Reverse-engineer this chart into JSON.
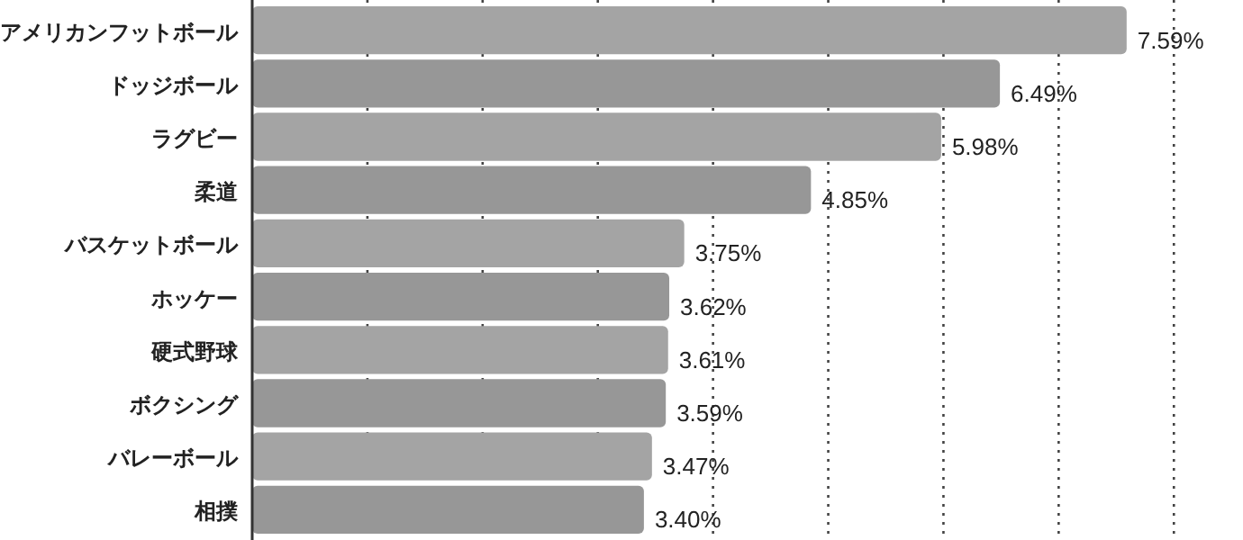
{
  "chart_data": {
    "type": "bar",
    "orientation": "horizontal",
    "categories": [
      "アメリカンフットボール",
      "ドッジボール",
      "ラグビー",
      "柔道",
      "バスケットボール",
      "ホッケー",
      "硬式野球",
      "ボクシング",
      "バレーボール",
      "相撲"
    ],
    "values": [
      7.59,
      6.49,
      5.98,
      4.85,
      3.75,
      3.62,
      3.61,
      3.59,
      3.47,
      3.4
    ],
    "value_labels": [
      "7.59%",
      "6.49%",
      "5.98%",
      "4.85%",
      "3.75%",
      "3.62%",
      "3.61%",
      "3.59%",
      "3.47%",
      "3.40%"
    ],
    "colors": [
      "#a4a4a4",
      "#979797",
      "#a4a4a4",
      "#979797",
      "#a4a4a4",
      "#979797",
      "#a4a4a4",
      "#979797",
      "#a4a4a4",
      "#979797"
    ],
    "xlim": [
      0,
      8.6
    ],
    "xticks": [
      {
        "value": 1,
        "label": null
      },
      {
        "value": 2,
        "label": null
      },
      {
        "value": 3,
        "label": null
      },
      {
        "value": 4,
        "label": null
      },
      {
        "value": 5,
        "label": null
      },
      {
        "value": 6,
        "label": null
      },
      {
        "value": 7,
        "label": null
      },
      {
        "value": 8,
        "label": null
      }
    ],
    "grid": "x",
    "tick_labels": "y"
  }
}
